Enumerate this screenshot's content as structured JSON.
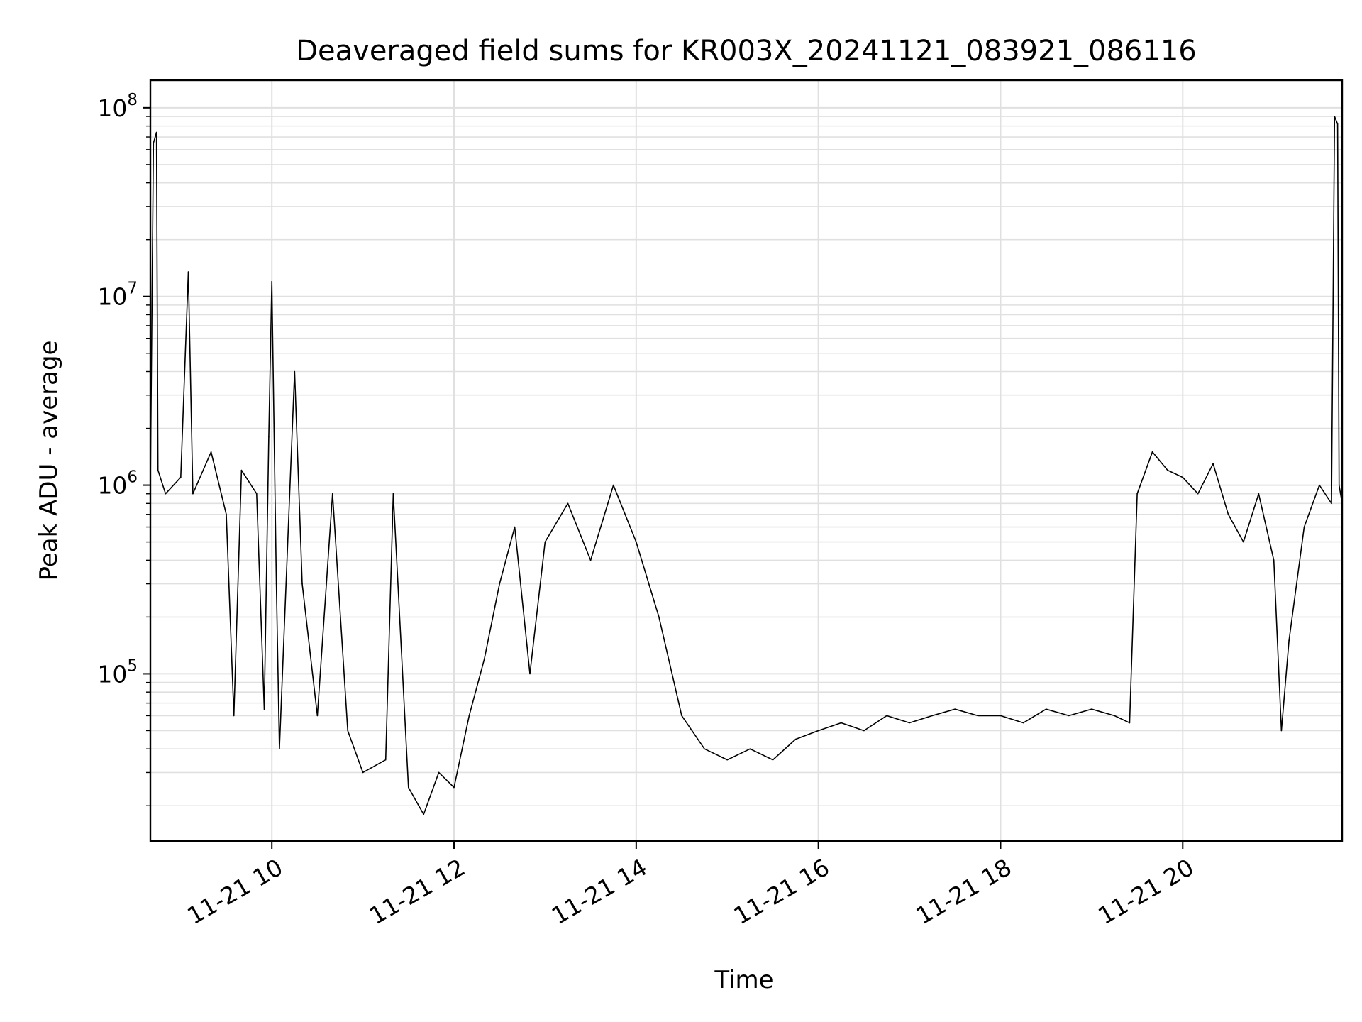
{
  "chart_data": {
    "type": "line",
    "title": "Deaveraged field sums for KR003X_20241121_083921_086116",
    "xlabel": "Time",
    "ylabel": "Peak ADU - average",
    "yscale": "log",
    "grid": true,
    "legend": "none",
    "xlim": [
      "2024-11-21T08:40",
      "2024-11-21T21:45"
    ],
    "ylim": [
      13000,
      140000000
    ],
    "x_ticks": [
      "11-21 10",
      "11-21 12",
      "11-21 14",
      "11-21 16",
      "11-21 18",
      "11-21 20"
    ],
    "y_ticks": [
      {
        "base": "10",
        "exp": "5",
        "value": 100000
      },
      {
        "base": "10",
        "exp": "6",
        "value": 1000000
      },
      {
        "base": "10",
        "exp": "7",
        "value": 10000000
      },
      {
        "base": "10",
        "exp": "8",
        "value": 100000000
      }
    ],
    "series": [
      {
        "color": "#000000",
        "points": [
          [
            "08:40",
            1000000
          ],
          [
            "08:42",
            65000000
          ],
          [
            "08:44",
            74000000
          ],
          [
            "08:45",
            1200000
          ],
          [
            "08:50",
            900000
          ],
          [
            "09:00",
            1100000
          ],
          [
            "09:05",
            13500000
          ],
          [
            "09:08",
            900000
          ],
          [
            "09:20",
            1500000
          ],
          [
            "09:30",
            700000
          ],
          [
            "09:35",
            60000
          ],
          [
            "09:40",
            1200000
          ],
          [
            "09:50",
            900000
          ],
          [
            "09:55",
            65000
          ],
          [
            "09:58",
            1800000
          ],
          [
            "10:00",
            12000000
          ],
          [
            "10:03",
            300000
          ],
          [
            "10:05",
            40000
          ],
          [
            "10:15",
            4000000
          ],
          [
            "10:20",
            300000
          ],
          [
            "10:30",
            60000
          ],
          [
            "10:40",
            900000
          ],
          [
            "10:50",
            50000
          ],
          [
            "11:00",
            30000
          ],
          [
            "11:15",
            35000
          ],
          [
            "11:20",
            900000
          ],
          [
            "11:30",
            25000
          ],
          [
            "11:40",
            18000
          ],
          [
            "11:50",
            30000
          ],
          [
            "12:00",
            25000
          ],
          [
            "12:10",
            60000
          ],
          [
            "12:20",
            120000
          ],
          [
            "12:30",
            300000
          ],
          [
            "12:40",
            600000
          ],
          [
            "12:50",
            100000
          ],
          [
            "13:00",
            500000
          ],
          [
            "13:15",
            800000
          ],
          [
            "13:30",
            400000
          ],
          [
            "13:45",
            1000000
          ],
          [
            "14:00",
            500000
          ],
          [
            "14:15",
            200000
          ],
          [
            "14:30",
            60000
          ],
          [
            "14:45",
            40000
          ],
          [
            "15:00",
            35000
          ],
          [
            "15:15",
            40000
          ],
          [
            "15:30",
            35000
          ],
          [
            "15:45",
            45000
          ],
          [
            "16:00",
            50000
          ],
          [
            "16:15",
            55000
          ],
          [
            "16:30",
            50000
          ],
          [
            "16:45",
            60000
          ],
          [
            "17:00",
            55000
          ],
          [
            "17:15",
            60000
          ],
          [
            "17:30",
            65000
          ],
          [
            "17:45",
            60000
          ],
          [
            "18:00",
            60000
          ],
          [
            "18:15",
            55000
          ],
          [
            "18:30",
            65000
          ],
          [
            "18:45",
            60000
          ],
          [
            "19:00",
            65000
          ],
          [
            "19:15",
            60000
          ],
          [
            "19:25",
            55000
          ],
          [
            "19:30",
            900000
          ],
          [
            "19:40",
            1500000
          ],
          [
            "19:50",
            1200000
          ],
          [
            "20:00",
            1100000
          ],
          [
            "20:10",
            900000
          ],
          [
            "20:20",
            1300000
          ],
          [
            "20:30",
            700000
          ],
          [
            "20:40",
            500000
          ],
          [
            "20:50",
            900000
          ],
          [
            "21:00",
            400000
          ],
          [
            "21:05",
            50000
          ],
          [
            "21:10",
            150000
          ],
          [
            "21:20",
            600000
          ],
          [
            "21:30",
            1000000
          ],
          [
            "21:38",
            800000
          ],
          [
            "21:40",
            90000000
          ],
          [
            "21:42",
            82000000
          ],
          [
            "21:43",
            1000000
          ],
          [
            "21:45",
            800000
          ]
        ]
      }
    ]
  }
}
